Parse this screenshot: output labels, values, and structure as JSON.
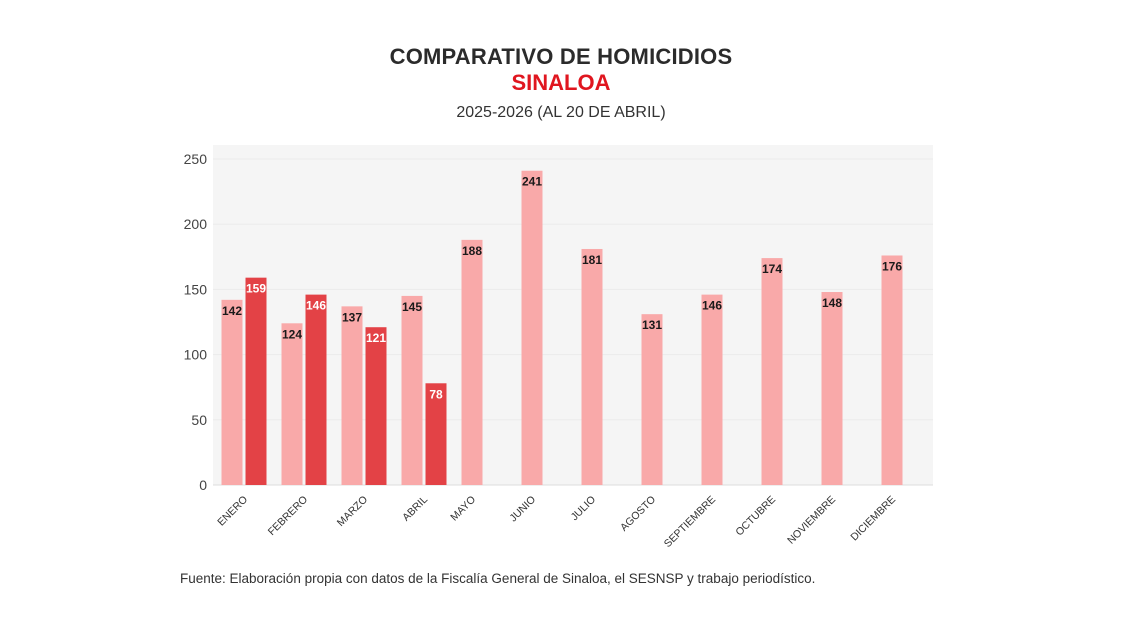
{
  "chart_data": {
    "type": "bar",
    "title": "COMPARATIVO DE HOMICIDIOS",
    "subtitle": "SINALOA",
    "period": "2025-2026 (AL 20 DE ABRIL)",
    "xlabel": "",
    "ylabel": "",
    "ylim": [
      0,
      250
    ],
    "yticks": [
      0,
      50,
      100,
      150,
      200,
      250
    ],
    "grid": true,
    "legend": "none",
    "categories": [
      "ENERO",
      "FEBRERO",
      "MARZO",
      "ABRIL",
      "MAYO",
      "JUNIO",
      "JULIO",
      "AGOSTO",
      "SEPTIEMBRE",
      "OCTUBRE",
      "NOVIEMBRE",
      "DICIEMBRE"
    ],
    "series": [
      {
        "name": "2025",
        "color": "#f9a9a9",
        "label_color": "#1a1a1a",
        "values": [
          142,
          124,
          137,
          145,
          188,
          241,
          181,
          131,
          146,
          174,
          148,
          176
        ]
      },
      {
        "name": "2026",
        "color": "#e34246",
        "label_color": "#ffffff",
        "values": [
          159,
          146,
          121,
          78,
          null,
          null,
          null,
          null,
          null,
          null,
          null,
          null
        ]
      }
    ],
    "source": "Fuente: Elaboración propia con datos de la Fiscalía General de Sinaloa, el SESNSP y trabajo periodístico."
  },
  "colors": {
    "title": "#2b2b2b",
    "accent_red": "#e0161f",
    "plot_background": "#f5f5f5"
  }
}
